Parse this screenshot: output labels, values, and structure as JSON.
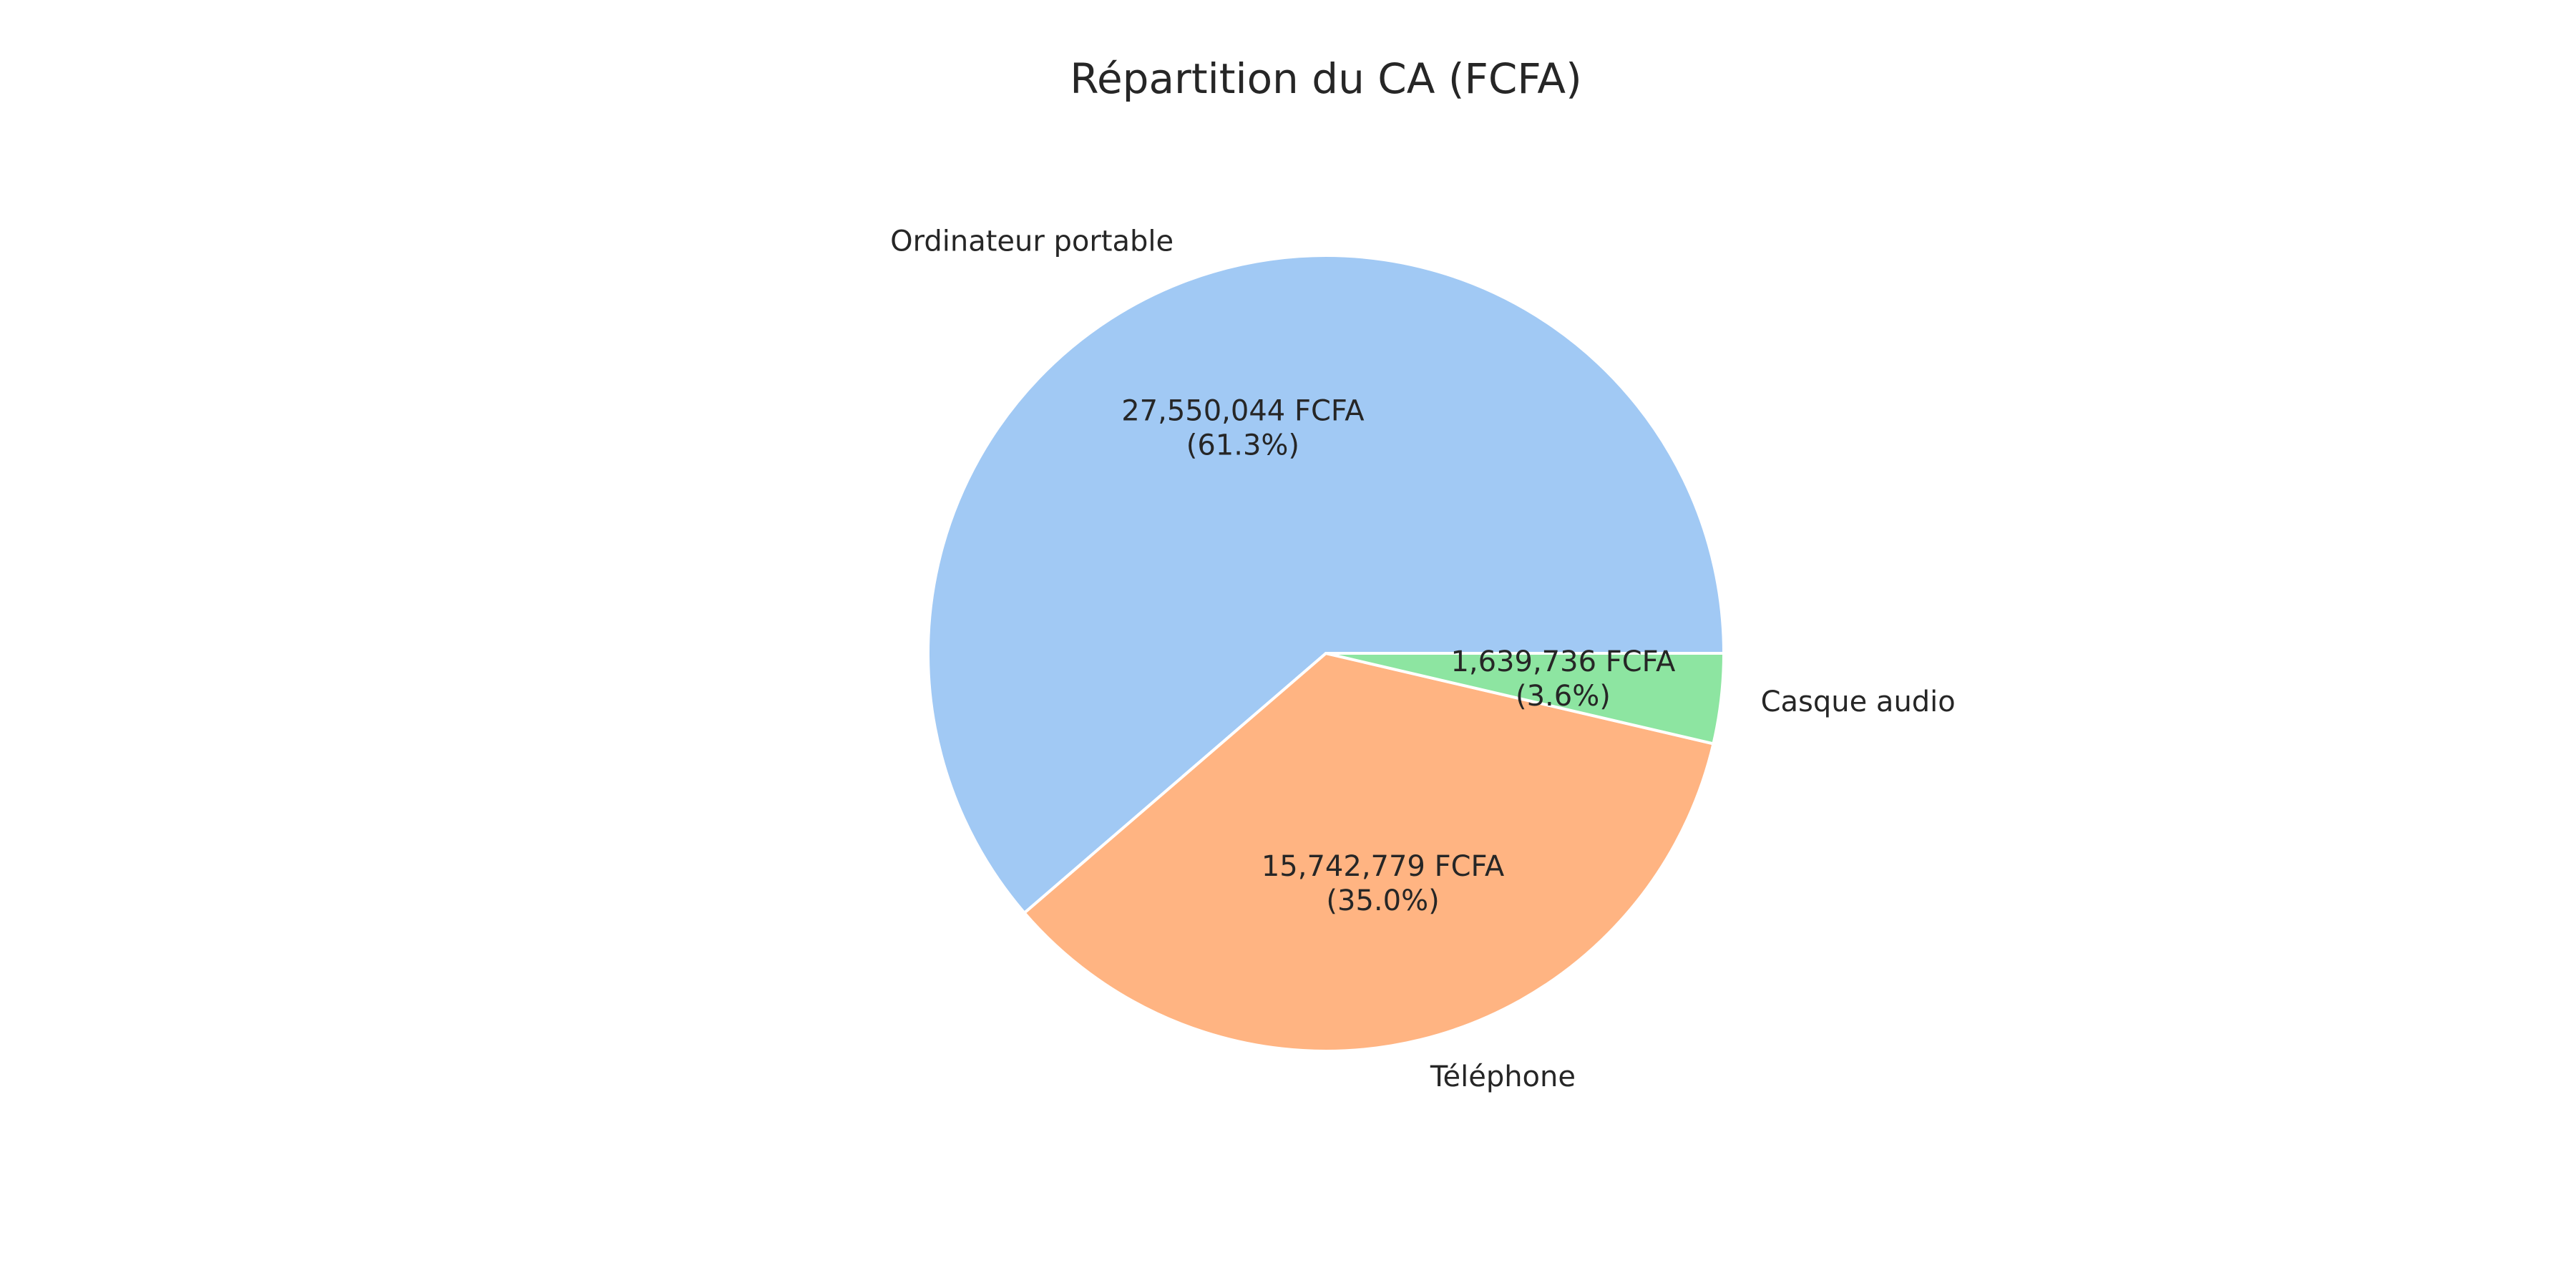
{
  "chart_data": {
    "type": "pie",
    "title": "Répartition du CA (FCFA)",
    "start_angle_deg": 0,
    "direction": "counterclockwise",
    "slices": [
      {
        "label": "Ordinateur portable",
        "value": 27550044,
        "value_text": "27,550,044 FCFA",
        "percent_text": "(61.3%)",
        "color": "#a1c9f4"
      },
      {
        "label": "Téléphone",
        "value": 15742779,
        "value_text": "15,742,779 FCFA",
        "percent_text": "(35.0%)",
        "color": "#ffb482"
      },
      {
        "label": "Casque audio",
        "value": 1639736,
        "value_text": "1,639,736 FCFA",
        "percent_text": "(3.6%)",
        "color": "#8de5a1"
      }
    ]
  }
}
